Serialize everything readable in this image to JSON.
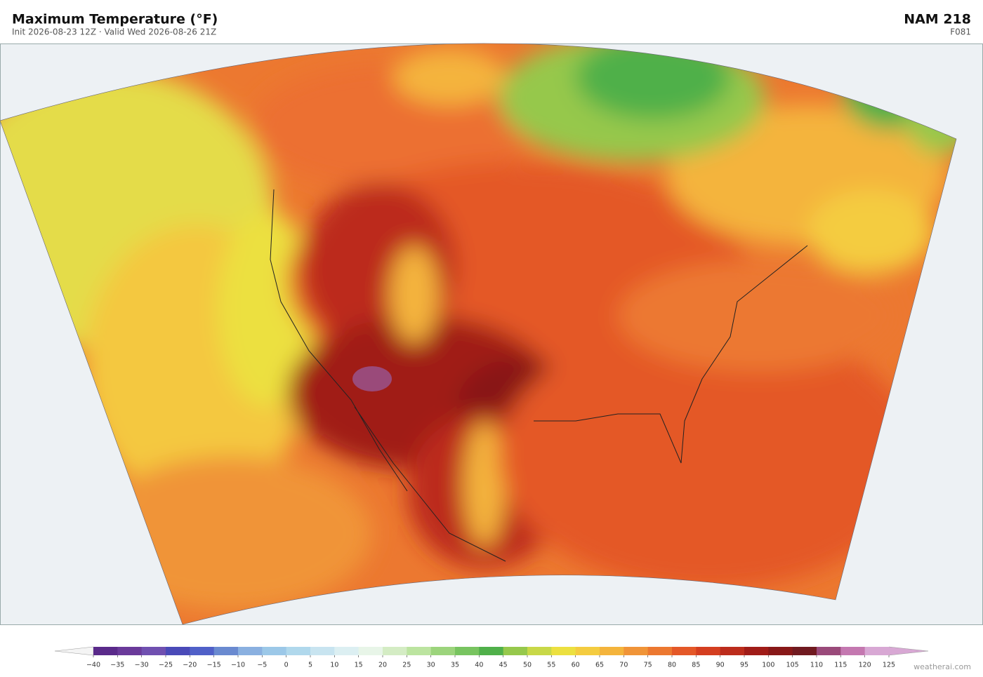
{
  "header": {
    "title": "Maximum Temperature  (°F)",
    "subtitle": "Init 2026-08-23 12Z  ·  Valid Wed 2026-08-26 21Z",
    "model": "NAM  218",
    "forecast_hour": "F081"
  },
  "colorbar": {
    "ticks": [
      {
        "value": -40,
        "label": "−40"
      },
      {
        "value": -35,
        "label": "−35"
      },
      {
        "value": -30,
        "label": "−30"
      },
      {
        "value": -25,
        "label": "−25"
      },
      {
        "value": -20,
        "label": "−20"
      },
      {
        "value": -15,
        "label": "−15"
      },
      {
        "value": -10,
        "label": "−10"
      },
      {
        "value": -5,
        "label": "−5"
      },
      0,
      5,
      10,
      15,
      20,
      25,
      30,
      35,
      40,
      45,
      50,
      55,
      60,
      65,
      70,
      75,
      80,
      85,
      90,
      95,
      100,
      105,
      110,
      115,
      120,
      125
    ],
    "colors": [
      "#5a2a8a",
      "#6a3a9a",
      "#7050b0",
      "#4a4ab8",
      "#5060c8",
      "#6a8ad0",
      "#8ab0e0",
      "#9cc8e8",
      "#b0d8ec",
      "#c8e4f0",
      "#dceff2",
      "#e8f5e8",
      "#d4ecc4",
      "#bce4a0",
      "#9cd47c",
      "#78c460",
      "#50b04a",
      "#96c84c",
      "#c8d848",
      "#ece040",
      "#f4cc40",
      "#f4b43c",
      "#f09438",
      "#ec7830",
      "#e45828",
      "#d43e20",
      "#bc2c1c",
      "#a01c18",
      "#881818",
      "#701a20",
      "#9a4a7a",
      "#c478b0",
      "#d8a8d4"
    ],
    "under_color": "#f4f4f4",
    "over_color": "#d8a8d4"
  },
  "watermark": "weatherai.com"
}
